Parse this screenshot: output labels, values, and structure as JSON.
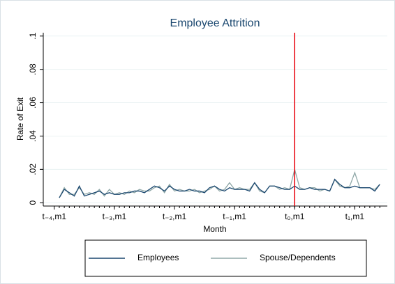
{
  "chart_data": {
    "type": "line",
    "title": "Employee Attrition",
    "x_label": "Month",
    "y_label": "Rate of Exit",
    "x": [
      -47,
      -46,
      -45,
      -44,
      -43,
      -42,
      -41,
      -40,
      -39,
      -38,
      -37,
      -36,
      -35,
      -34,
      -33,
      -32,
      -31,
      -30,
      -29,
      -28,
      -27,
      -26,
      -25,
      -24,
      -23,
      -22,
      -21,
      -20,
      -19,
      -18,
      -17,
      -16,
      -15,
      -14,
      -13,
      -12,
      -11,
      -10,
      -9,
      -8,
      -7,
      -6,
      -5,
      -4,
      -3,
      -2,
      -1,
      0,
      1,
      2,
      3,
      4,
      5,
      6,
      7,
      8,
      9,
      10,
      11,
      12,
      13,
      14,
      15,
      16,
      17
    ],
    "series": [
      {
        "name": "Employees",
        "color": "#1a476f",
        "values": [
          0.003,
          0.008,
          0.006,
          0.004,
          0.01,
          0.004,
          0.005,
          0.006,
          0.007,
          0.005,
          0.006,
          0.005,
          0.005,
          0.006,
          0.006,
          0.007,
          0.007,
          0.006,
          0.008,
          0.01,
          0.009,
          0.007,
          0.01,
          0.008,
          0.007,
          0.007,
          0.008,
          0.007,
          0.007,
          0.006,
          0.009,
          0.01,
          0.008,
          0.007,
          0.009,
          0.008,
          0.008,
          0.008,
          0.007,
          0.012,
          0.008,
          0.006,
          0.01,
          0.01,
          0.009,
          0.008,
          0.008,
          0.01,
          0.008,
          0.008,
          0.009,
          0.008,
          0.008,
          0.008,
          0.007,
          0.014,
          0.011,
          0.009,
          0.009,
          0.01,
          0.009,
          0.009,
          0.009,
          0.007,
          0.011
        ]
      },
      {
        "name": "Spouse/Dependents",
        "color": "#90a8a8",
        "values": [
          0.003,
          0.009,
          0.005,
          0.005,
          0.009,
          0.005,
          0.006,
          0.005,
          0.008,
          0.004,
          0.008,
          0.005,
          0.006,
          0.005,
          0.007,
          0.006,
          0.008,
          0.007,
          0.007,
          0.009,
          0.01,
          0.006,
          0.011,
          0.007,
          0.008,
          0.007,
          0.007,
          0.008,
          0.006,
          0.007,
          0.008,
          0.01,
          0.007,
          0.008,
          0.012,
          0.008,
          0.009,
          0.008,
          0.008,
          0.012,
          0.007,
          0.006,
          0.01,
          0.01,
          0.008,
          0.009,
          0.008,
          0.02,
          0.009,
          0.008,
          0.009,
          0.009,
          0.007,
          0.008,
          0.007,
          0.014,
          0.01,
          0.009,
          0.01,
          0.018,
          0.009,
          0.009,
          0.009,
          0.008,
          0.011
        ]
      }
    ],
    "xlim": [
      -50.2,
      18.5
    ],
    "ylim": [
      -0.002,
      0.102
    ],
    "xticks": [
      {
        "value": -48,
        "label": "t₋₄,m1"
      },
      {
        "value": -36,
        "label": "t₋₃,m1"
      },
      {
        "value": -24,
        "label": "t₋₂,m1"
      },
      {
        "value": -12,
        "label": "t₋₁,m1"
      },
      {
        "value": 0,
        "label": "t₀,m1"
      },
      {
        "value": 12,
        "label": "t₁,m1"
      }
    ],
    "yticks": [
      0,
      {
        "value": 0.02,
        "label": ".02"
      },
      {
        "value": 0.04,
        "label": ".04"
      },
      {
        "value": 0.06,
        "label": ".06"
      },
      {
        "value": 0.08,
        "label": ".08"
      },
      {
        "value": 0.1,
        "label": ".1"
      }
    ],
    "grid": true,
    "vline": {
      "x": 0,
      "color": "#e8000b"
    },
    "legend": "bottom"
  }
}
